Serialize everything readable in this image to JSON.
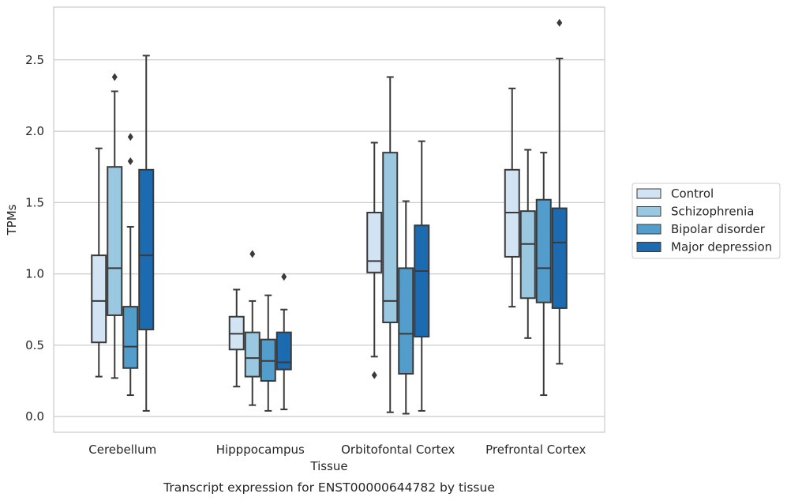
{
  "chart_data": {
    "type": "box",
    "caption": "Transcript expression for ENST00000644782 by tissue",
    "xlabel": "Tissue",
    "ylabel": "TPMs",
    "ylim": [
      -0.11,
      2.87
    ],
    "yticks": [
      0.0,
      0.5,
      1.0,
      1.5,
      2.0,
      2.5
    ],
    "ytick_labels": [
      "0.0",
      "0.5",
      "1.0",
      "1.5",
      "2.0",
      "2.5"
    ],
    "grid": "horizontal",
    "legend_position": "right",
    "categories": [
      "Cerebellum",
      "Hipppocampus",
      "Orbitofontal Cortex",
      "Prefrontal Cortex"
    ],
    "series": [
      {
        "name": "Control",
        "color": "#d2e3f3",
        "boxes": [
          {
            "whislo": 0.28,
            "q1": 0.52,
            "med": 0.81,
            "q3": 1.13,
            "whishi": 1.88,
            "fliers": []
          },
          {
            "whislo": 0.21,
            "q1": 0.47,
            "med": 0.58,
            "q3": 0.7,
            "whishi": 0.89,
            "fliers": []
          },
          {
            "whislo": 0.42,
            "q1": 1.01,
            "med": 1.09,
            "q3": 1.43,
            "whishi": 1.92,
            "fliers": [
              0.29
            ]
          },
          {
            "whislo": 0.77,
            "q1": 1.12,
            "med": 1.43,
            "q3": 1.73,
            "whishi": 2.3,
            "fliers": []
          }
        ]
      },
      {
        "name": "Schizophrenia",
        "color": "#9ac8e0",
        "boxes": [
          {
            "whislo": 0.27,
            "q1": 0.71,
            "med": 1.04,
            "q3": 1.75,
            "whishi": 2.28,
            "fliers": [
              2.38
            ]
          },
          {
            "whislo": 0.08,
            "q1": 0.28,
            "med": 0.41,
            "q3": 0.59,
            "whishi": 0.81,
            "fliers": [
              1.14
            ]
          },
          {
            "whislo": 0.03,
            "q1": 0.66,
            "med": 0.81,
            "q3": 1.85,
            "whishi": 2.38,
            "fliers": []
          },
          {
            "whislo": 0.55,
            "q1": 0.83,
            "med": 1.21,
            "q3": 1.44,
            "whishi": 1.87,
            "fliers": []
          }
        ]
      },
      {
        "name": "Bipolar disorder",
        "color": "#529dcc",
        "boxes": [
          {
            "whislo": 0.15,
            "q1": 0.34,
            "med": 0.49,
            "q3": 0.77,
            "whishi": 1.33,
            "fliers": [
              1.79,
              1.96
            ]
          },
          {
            "whislo": 0.04,
            "q1": 0.25,
            "med": 0.39,
            "q3": 0.54,
            "whishi": 0.85,
            "fliers": []
          },
          {
            "whislo": 0.02,
            "q1": 0.3,
            "med": 0.58,
            "q3": 1.04,
            "whishi": 1.51,
            "fliers": []
          },
          {
            "whislo": 0.15,
            "q1": 0.8,
            "med": 1.04,
            "q3": 1.52,
            "whishi": 1.85,
            "fliers": []
          }
        ]
      },
      {
        "name": "Major depression",
        "color": "#1c6aaf",
        "boxes": [
          {
            "whislo": 0.04,
            "q1": 0.61,
            "med": 1.13,
            "q3": 1.73,
            "whishi": 2.53,
            "fliers": []
          },
          {
            "whislo": 0.05,
            "q1": 0.33,
            "med": 0.38,
            "q3": 0.59,
            "whishi": 0.75,
            "fliers": [
              0.98
            ]
          },
          {
            "whislo": 0.04,
            "q1": 0.56,
            "med": 1.02,
            "q3": 1.34,
            "whishi": 1.93,
            "fliers": []
          },
          {
            "whislo": 0.37,
            "q1": 0.76,
            "med": 1.22,
            "q3": 1.46,
            "whishi": 2.51,
            "fliers": [
              2.76
            ]
          }
        ]
      }
    ]
  }
}
